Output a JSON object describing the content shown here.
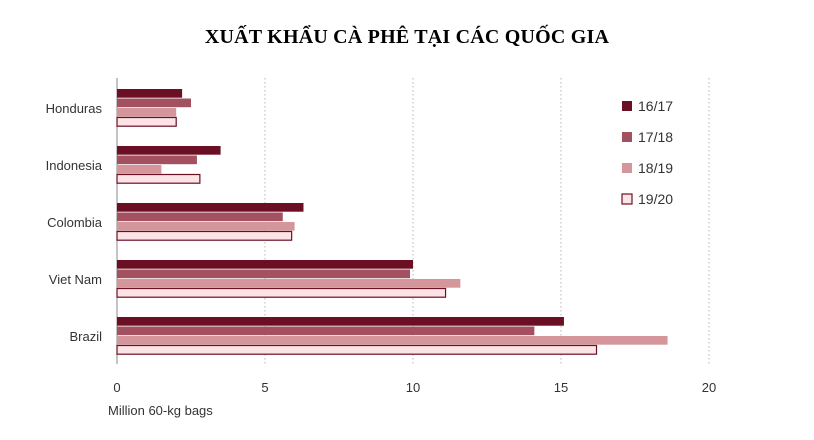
{
  "title": "XUẤT KHẨU CÀ PHÊ TẠI CÁC QUỐC GIA",
  "chart_data": {
    "type": "bar",
    "orientation": "horizontal",
    "title": "XUẤT KHẨU CÀ PHÊ TẠI CÁC QUỐC GIA",
    "xlabel": "Million 60-kg bags",
    "ylabel": "",
    "xlim": [
      0,
      20
    ],
    "x_ticks": [
      "0",
      "5",
      "10",
      "15",
      "20"
    ],
    "grid": "vertical dotted",
    "legend_position": "right",
    "categories": [
      "Honduras",
      "Indonesia",
      "Colombia",
      "Viet Nam",
      "Brazil"
    ],
    "series": [
      {
        "name": "16/17",
        "color": "#6b1024",
        "values": [
          2.2,
          3.5,
          6.3,
          10.0,
          15.1
        ]
      },
      {
        "name": "17/18",
        "color": "#a35060",
        "values": [
          2.5,
          2.7,
          5.6,
          9.9,
          14.1
        ]
      },
      {
        "name": "18/19",
        "color": "#d4969b",
        "values": [
          2.0,
          1.5,
          6.0,
          11.6,
          18.6
        ]
      },
      {
        "name": "19/20",
        "color": "#fbe3e6",
        "edge": "#6b1024",
        "values": [
          2.0,
          2.8,
          5.9,
          11.1,
          16.2
        ]
      }
    ]
  }
}
